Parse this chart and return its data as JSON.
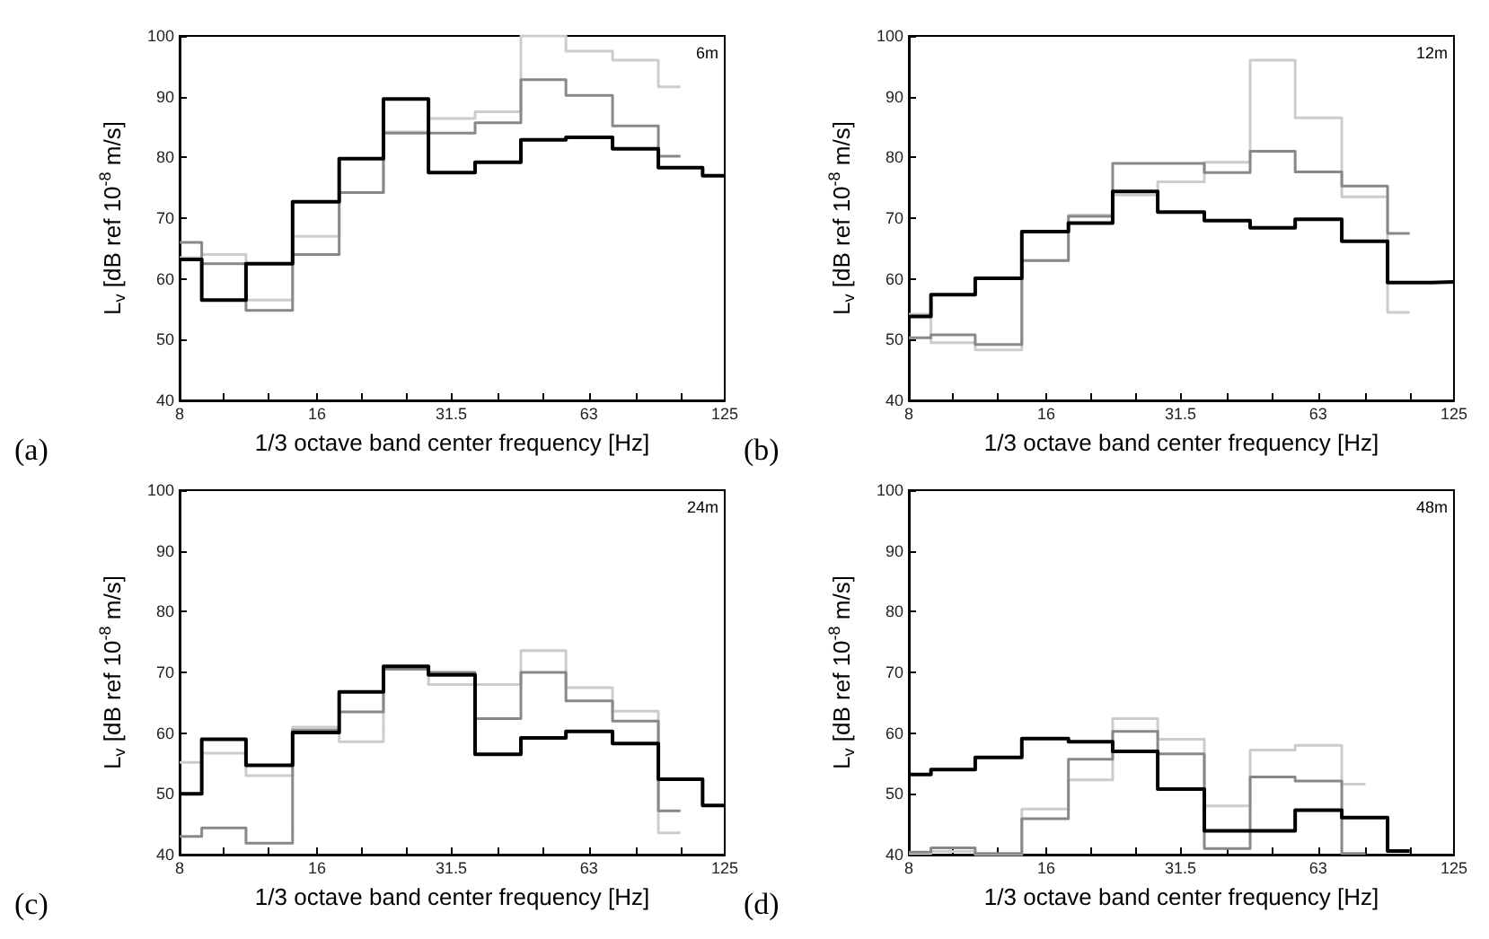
{
  "chart_data": [
    {
      "type": "step",
      "xlabel": "1/3 octave band center frequency [Hz]",
      "ylabel": "L$_{v}$ [dB ref 10$^{-8}$ m/s]",
      "annotations": [
        "6m",
        "(a)"
      ],
      "log": "x",
      "xlim": [
        8,
        125
      ],
      "ylim": [
        40,
        100
      ],
      "xticks": [
        8,
        {
          "value": 10,
          "label": null
        },
        {
          "value": 12.5,
          "label": null
        },
        16,
        {
          "value": 20,
          "label": null
        },
        {
          "value": 25,
          "label": null
        },
        31.5,
        {
          "value": 40,
          "label": null
        },
        {
          "value": 50,
          "label": null
        },
        63,
        {
          "value": 80,
          "label": null
        },
        {
          "value": 100,
          "label": null
        },
        125
      ],
      "yticks": [
        40,
        50,
        60,
        70,
        80,
        90,
        100
      ],
      "x": [
        8,
        10,
        12.5,
        16,
        20,
        25,
        31.5,
        40,
        50,
        63,
        80,
        100,
        125
      ],
      "series": [
        {
          "color": "#cccccc",
          "x": [
            8,
            10,
            12.5,
            16,
            20,
            25,
            31.5,
            40,
            50,
            63,
            80,
            100
          ],
          "values": [
            63.5,
            64,
            56.5,
            67,
            74.2,
            84.2,
            86.4,
            87.5,
            100,
            97.5,
            96,
            91.6
          ]
        },
        {
          "color": "#888888",
          "x": [
            8,
            10,
            12.5,
            16,
            20,
            25,
            31.5,
            40,
            50,
            63,
            80,
            100
          ],
          "values": [
            66,
            62.5,
            54.8,
            64,
            74.2,
            84,
            84,
            85.7,
            92.8,
            90.2,
            85.2,
            80.2
          ]
        },
        {
          "color": "#000000",
          "values": [
            63.2,
            56.5,
            62.5,
            72.7,
            79.8,
            89.6,
            77.5,
            79.2,
            82.9,
            83.3,
            81.4,
            78.3,
            77
          ]
        }
      ]
    },
    {
      "type": "step",
      "xlabel": "1/3 octave band center frequency [Hz]",
      "ylabel": "L$_{v}$ [dB ref 10$^{-8}$ m/s]",
      "annotations": [
        "12m",
        "(b)"
      ],
      "log": "x",
      "xlim": [
        8,
        125
      ],
      "ylim": [
        40,
        100
      ],
      "xticks": [
        8,
        {
          "value": 10,
          "label": null
        },
        {
          "value": 12.5,
          "label": null
        },
        16,
        {
          "value": 20,
          "label": null
        },
        {
          "value": 25,
          "label": null
        },
        31.5,
        {
          "value": 40,
          "label": null
        },
        {
          "value": 50,
          "label": null
        },
        63,
        {
          "value": 80,
          "label": null
        },
        {
          "value": 100,
          "label": null
        },
        125
      ],
      "yticks": [
        40,
        50,
        60,
        70,
        80,
        90,
        100
      ],
      "x": [
        8,
        10,
        12.5,
        16,
        20,
        25,
        31.5,
        40,
        50,
        63,
        80,
        100,
        125
      ],
      "series": [
        {
          "color": "#cccccc",
          "x": [
            8,
            10,
            12.5,
            16,
            20,
            25,
            31.5,
            40,
            50,
            63,
            80,
            100
          ],
          "values": [
            54.2,
            49.5,
            48.3,
            63,
            70.5,
            73.8,
            76,
            79.2,
            96,
            86.5,
            73.5,
            54.5
          ]
        },
        {
          "color": "#888888",
          "x": [
            8,
            10,
            12.5,
            16,
            20,
            25,
            31.5,
            40,
            50,
            63,
            80,
            100
          ],
          "values": [
            50.3,
            50.8,
            49.2,
            63,
            70.3,
            79,
            79,
            77.5,
            81,
            77.6,
            75.3,
            67.5
          ]
        },
        {
          "color": "#000000",
          "values": [
            53.8,
            57.4,
            60.1,
            67.8,
            69.2,
            74.4,
            71,
            69.6,
            68.4,
            69.8,
            66.2,
            59.4,
            59.5
          ]
        }
      ]
    },
    {
      "type": "step",
      "xlabel": "1/3 octave band center frequency [Hz]",
      "ylabel": "L$_{v}$ [dB ref 10$^{-8}$ m/s]",
      "annotations": [
        "24m",
        "(c)"
      ],
      "log": "x",
      "xlim": [
        8,
        125
      ],
      "ylim": [
        40,
        100
      ],
      "xticks": [
        8,
        {
          "value": 10,
          "label": null
        },
        {
          "value": 12.5,
          "label": null
        },
        16,
        {
          "value": 20,
          "label": null
        },
        {
          "value": 25,
          "label": null
        },
        31.5,
        {
          "value": 40,
          "label": null
        },
        {
          "value": 50,
          "label": null
        },
        63,
        {
          "value": 80,
          "label": null
        },
        {
          "value": 100,
          "label": null
        },
        125
      ],
      "yticks": [
        40,
        50,
        60,
        70,
        80,
        90,
        100
      ],
      "x": [
        8,
        10,
        12.5,
        16,
        20,
        25,
        31.5,
        40,
        50,
        63,
        80,
        100,
        125
      ],
      "series": [
        {
          "color": "#cccccc",
          "x": [
            8,
            10,
            12.5,
            16,
            20,
            25,
            31.5,
            40,
            50,
            63,
            80,
            100
          ],
          "values": [
            55.2,
            56.7,
            53,
            61,
            58.6,
            70.6,
            68,
            68,
            73.6,
            67.5,
            63.6,
            43.6
          ]
        },
        {
          "color": "#888888",
          "x": [
            8,
            10,
            12.5,
            16,
            20,
            25,
            31.5,
            40,
            50,
            63,
            80,
            100
          ],
          "values": [
            43,
            44.4,
            41.9,
            60.5,
            63.5,
            70.5,
            70,
            62.4,
            70,
            65.3,
            62,
            47.2
          ]
        },
        {
          "color": "#000000",
          "values": [
            50,
            59,
            54.7,
            60.1,
            66.8,
            71,
            69.6,
            56.5,
            59.2,
            60.3,
            58.3,
            52.4,
            48.1
          ]
        }
      ]
    },
    {
      "type": "step",
      "xlabel": "1/3 octave band center frequency [Hz]",
      "ylabel": "L$_{v}$ [dB ref 10$^{-8}$ m/s]",
      "annotations": [
        "48m",
        "(d)"
      ],
      "log": "x",
      "xlim": [
        8,
        125
      ],
      "ylim": [
        40,
        100
      ],
      "xticks": [
        8,
        {
          "value": 10,
          "label": null
        },
        {
          "value": 12.5,
          "label": null
        },
        16,
        {
          "value": 20,
          "label": null
        },
        {
          "value": 25,
          "label": null
        },
        31.5,
        {
          "value": 40,
          "label": null
        },
        {
          "value": 50,
          "label": null
        },
        63,
        {
          "value": 80,
          "label": null
        },
        {
          "value": 100,
          "label": null
        },
        125
      ],
      "yticks": [
        40,
        50,
        60,
        70,
        80,
        90,
        100
      ],
      "x": [
        8,
        10,
        12.5,
        16,
        20,
        25,
        31.5,
        40,
        50,
        63,
        80,
        100
      ],
      "series": [
        {
          "color": "#cccccc",
          "x": [
            8,
            10,
            12.5,
            16,
            20,
            25,
            31.5,
            40,
            50,
            63,
            80
          ],
          "values": [
            40.2,
            40.5,
            40,
            47.5,
            52.3,
            62.4,
            59,
            48,
            57.2,
            58,
            51.6
          ]
        },
        {
          "color": "#888888",
          "x": [
            8,
            10,
            12.5,
            16,
            20,
            25,
            31.5,
            40,
            50,
            63,
            80
          ],
          "values": [
            40.4,
            41.1,
            40.2,
            45.9,
            55.7,
            60.3,
            56.6,
            41,
            52.8,
            52.1,
            40.2
          ]
        },
        {
          "color": "#000000",
          "values": [
            53.2,
            54,
            56,
            59.1,
            58.6,
            57,
            50.8,
            43.9,
            43.9,
            47.3,
            46.1,
            40.6
          ]
        }
      ]
    }
  ]
}
